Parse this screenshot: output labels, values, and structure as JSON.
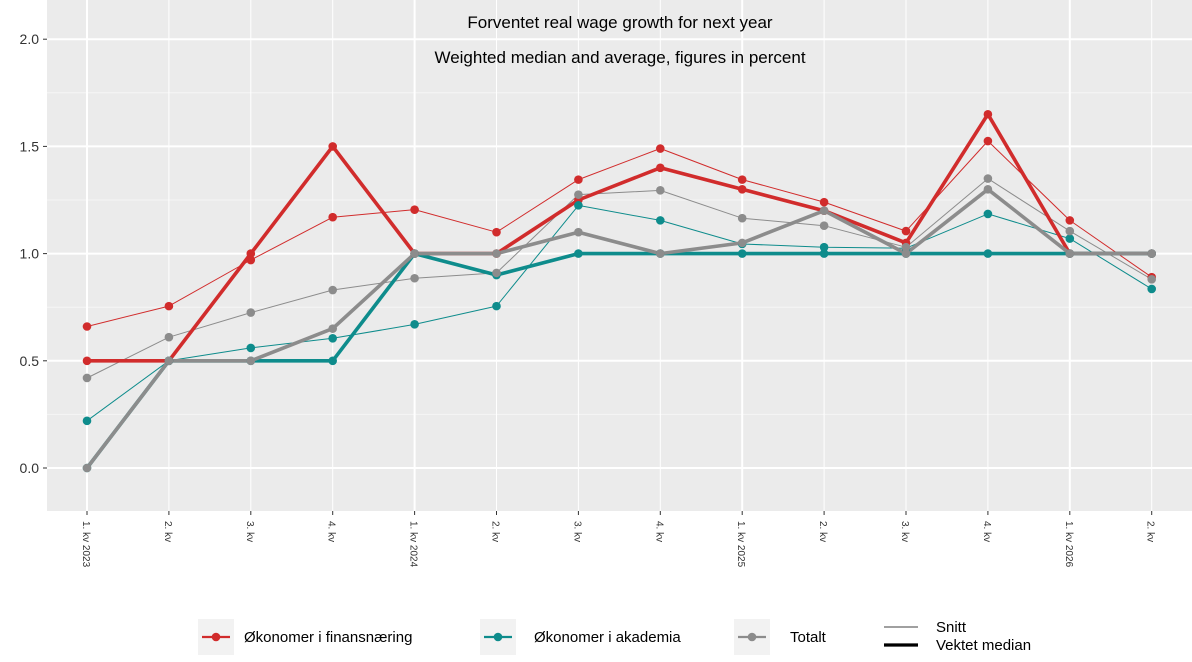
{
  "chart_data": {
    "type": "line",
    "title": "Forventet real wage growth for next year",
    "subtitle": "Weighted median and average, figures in percent",
    "categories": [
      "1. kv 2023",
      "2. kv",
      "3. kv",
      "4. kv",
      "1. kv 2024",
      "2. kv",
      "3. kv",
      "4. kv",
      "1. kv 2025",
      "2. kv",
      "3. kv",
      "4. kv",
      "1. kv 2026",
      "2. kv"
    ],
    "ylim": [
      -0.2,
      2.1
    ],
    "yticks": [
      0.0,
      0.5,
      1.0,
      1.5,
      2.0
    ],
    "ytick_labels": [
      "0.0",
      "0.5",
      "1.0",
      "1.5",
      "2.0"
    ],
    "grid": true,
    "legend_position": "bottom",
    "series": [
      {
        "name": "Økonomer i finansnæring",
        "color": "#d12c2c",
        "snitt": [
          0.66,
          0.755,
          0.97,
          1.17,
          1.205,
          1.1,
          1.345,
          1.49,
          1.345,
          1.24,
          1.105,
          1.525,
          1.155,
          0.89
        ],
        "median": [
          0.5,
          0.5,
          1.0,
          1.5,
          1.0,
          1.0,
          1.25,
          1.4,
          1.3,
          1.2,
          1.05,
          1.65,
          1.0,
          1.0
        ]
      },
      {
        "name": "Økonomer i akademia",
        "color": "#0e8c8c",
        "snitt": [
          0.22,
          0.5,
          0.56,
          0.605,
          0.67,
          0.755,
          1.225,
          1.155,
          1.045,
          1.03,
          1.025,
          1.185,
          1.07,
          0.835
        ],
        "median": [
          0.0,
          0.5,
          0.5,
          0.5,
          1.0,
          0.9,
          1.0,
          1.0,
          1.0,
          1.0,
          1.0,
          1.0,
          1.0,
          1.0
        ]
      },
      {
        "name": "Totalt",
        "color": "#8c8c8c",
        "snitt": [
          0.42,
          0.61,
          0.725,
          0.83,
          0.885,
          0.91,
          1.275,
          1.295,
          1.165,
          1.13,
          1.03,
          1.35,
          1.105,
          0.88
        ],
        "median": [
          0.0,
          0.5,
          0.5,
          0.65,
          1.0,
          1.0,
          1.1,
          1.0,
          1.05,
          1.2,
          1.0,
          1.3,
          1.0,
          1.0
        ]
      }
    ],
    "linetype_legend": {
      "thin": "Snitt",
      "thick": "Vektet median"
    }
  }
}
